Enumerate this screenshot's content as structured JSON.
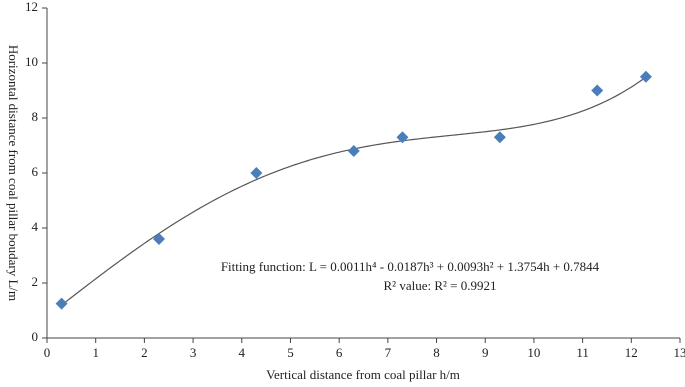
{
  "chart_data": {
    "type": "scatter",
    "xlabel": "Vertical distance from coal pillar h/m",
    "ylabel": "Horizontal distance from coal pillar boudary L/m",
    "x": [
      0.3,
      2.3,
      4.3,
      6.3,
      7.3,
      9.3,
      11.3,
      12.3
    ],
    "values": [
      1.25,
      3.6,
      6.0,
      6.8,
      7.3,
      7.3,
      9.0,
      9.5
    ],
    "color": "#4a7ebb",
    "fit": {
      "coefficients": [
        0.0011,
        -0.0187,
        0.0093,
        1.3754,
        0.7844
      ],
      "color": "#555555"
    },
    "annotations": [
      "Fitting function: L = 0.0011h⁴ - 0.0187h³ + 0.0093h² + 1.3754h + 0.7844",
      "R² value: R² = 0.9921"
    ],
    "xlim": [
      0,
      13
    ],
    "xticks": [
      0,
      1,
      2,
      3,
      4,
      5,
      6,
      7,
      8,
      9,
      10,
      11,
      12,
      13
    ],
    "ylim": [
      0,
      12
    ],
    "yticks": [
      0,
      2,
      4,
      6,
      8,
      10,
      12
    ]
  }
}
